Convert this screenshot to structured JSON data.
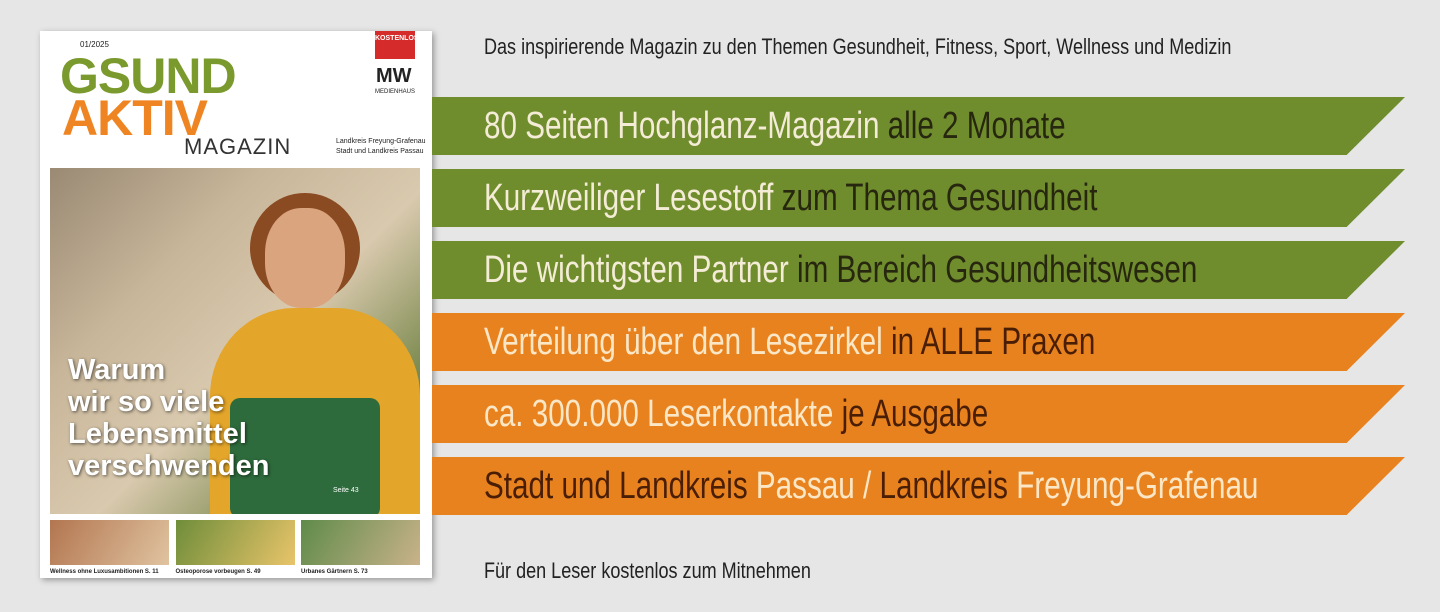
{
  "cover": {
    "issue": "01/2025",
    "logo": {
      "line1": "GSUND",
      "line2": "AKTIV",
      "line3": "MAGAZIN"
    },
    "badge": "KOSTENLOS",
    "publisher_mark": "MW",
    "publisher": "MEDIENHAUS",
    "regions": [
      "Landkreis Freyung-Grafenau",
      "Stadt und Landkreis Passau"
    ],
    "headline": [
      "Warum",
      "wir so viele",
      "Lebensmittel",
      "verschwenden"
    ],
    "headline_page": "Seite 43",
    "teasers": [
      {
        "title": "Wellness ohne Luxusambitionen",
        "page": "S. 11"
      },
      {
        "title": "Osteoporose vorbeugen",
        "page": "S. 49"
      },
      {
        "title": "Urbanes Gärtnern",
        "page": "S. 73"
      }
    ]
  },
  "intro": "Das inspirierende Magazin zu den Themen Gesundheit, Fitness, Sport, Wellness und Medizin",
  "bars": [
    {
      "color": "#6f8d2d",
      "segments": [
        {
          "text": "80 Seiten Hochglanz-Magazin",
          "color": "#f4ecd6"
        },
        {
          "text": "alle 2 Monate",
          "color": "#27270f"
        }
      ]
    },
    {
      "color": "#6f8d2d",
      "segments": [
        {
          "text": "Kurzweiliger Lesestoff",
          "color": "#f4ecd6"
        },
        {
          "text": "zum Thema Gesundheit",
          "color": "#27270f"
        }
      ]
    },
    {
      "color": "#6f8d2d",
      "segments": [
        {
          "text": "Die wichtigsten Partner",
          "color": "#f4ecd6"
        },
        {
          "text": "im Bereich Gesundheitswesen",
          "color": "#27270f"
        }
      ]
    },
    {
      "color": "#e8821f",
      "segments": [
        {
          "text": "Verteilung über den Lesezirkel",
          "color": "#fbe7c6"
        },
        {
          "text": "in ALLE Praxen",
          "color": "#4a1e05"
        }
      ]
    },
    {
      "color": "#e8821f",
      "segments": [
        {
          "text": "ca. 300.000 Leserkontakte",
          "color": "#fbe7c6"
        },
        {
          "text": "je Ausgabe",
          "color": "#4a1e05"
        }
      ]
    },
    {
      "color": "#e8821f",
      "segments": [
        {
          "text": "Stadt und Landkreis",
          "color": "#4a1e05"
        },
        {
          "text": "Passau /",
          "color": "#fbe7c6"
        },
        {
          "text": "Landkreis",
          "color": "#4a1e05"
        },
        {
          "text": "Freyung-Grafenau",
          "color": "#fbe7c6"
        }
      ]
    }
  ],
  "footer": "Für den Leser kostenlos zum Mitnehmen"
}
